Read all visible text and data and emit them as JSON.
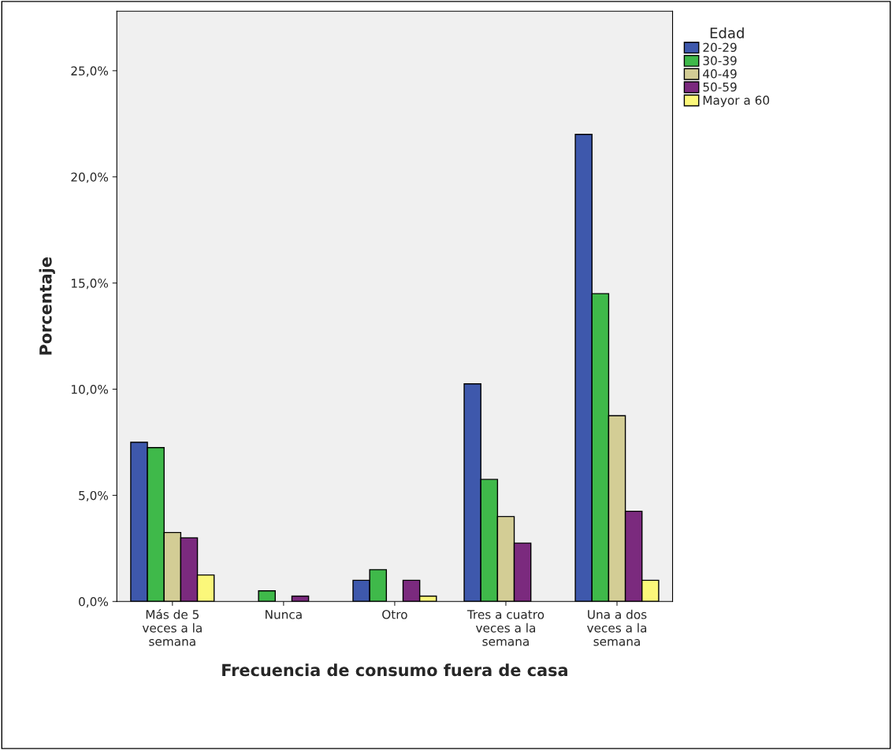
{
  "chart_data": {
    "type": "bar",
    "xlabel": "Frecuencia de consumo fuera de casa",
    "ylabel": "Porcentaje",
    "legend_title": "Edad",
    "legend": "top right",
    "categories": [
      "Más de 5\nveces a la\nsemana",
      "Nunca",
      "Otro",
      "Tres a cuatro\nveces a la\nsemana",
      "Una a dos\nveces a la\nsemana"
    ],
    "series": [
      {
        "name": "20-29",
        "color": "#3e58ac",
        "values": [
          7.5,
          0,
          1.0,
          10.25,
          22.0
        ]
      },
      {
        "name": "30-39",
        "color": "#3fb94a",
        "values": [
          7.25,
          0.5,
          1.5,
          5.75,
          14.5
        ]
      },
      {
        "name": "40-49",
        "color": "#d3cd95",
        "values": [
          3.25,
          0,
          0,
          4.0,
          8.75
        ]
      },
      {
        "name": "50-59",
        "color": "#7b2a7e",
        "values": [
          3.0,
          0.25,
          1.0,
          2.75,
          4.25
        ]
      },
      {
        "name": "Mayor a 60",
        "color": "#fbf77a",
        "values": [
          1.25,
          0,
          0.25,
          0,
          1.0
        ]
      }
    ],
    "ylim": [
      0,
      27.8
    ],
    "yticks": [
      {
        "value": 0,
        "label": "0,0%"
      },
      {
        "value": 5,
        "label": "5,0%"
      },
      {
        "value": 10,
        "label": "10,0%"
      },
      {
        "value": 15,
        "label": "15,0%"
      },
      {
        "value": 20,
        "label": "20,0%"
      },
      {
        "value": 25,
        "label": "25,0%"
      }
    ],
    "grid": false
  }
}
